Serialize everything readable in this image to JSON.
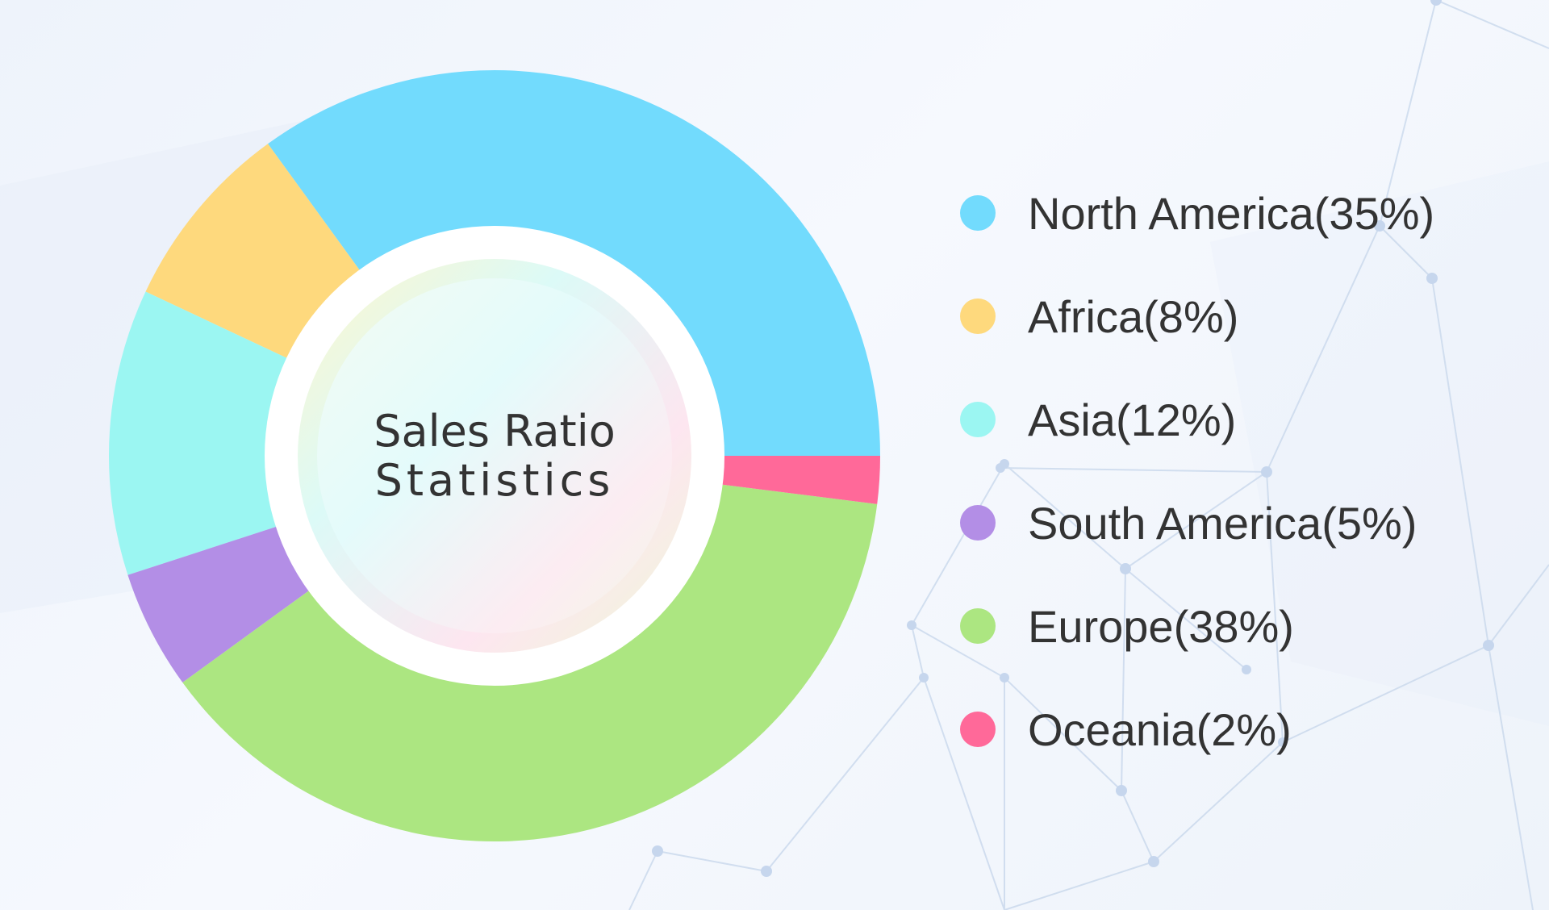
{
  "chart_data": {
    "type": "pie",
    "variant": "donut",
    "center_title": [
      "Sales Ratio",
      "Statistics"
    ],
    "legend_position": "right",
    "slices": [
      {
        "name": "North America",
        "label": "North America(35%)",
        "value": 35,
        "color": "#72dbfd"
      },
      {
        "name": "Africa",
        "label": "Africa(8%)",
        "value": 8,
        "color": "#fed97d"
      },
      {
        "name": "Asia",
        "label": "Asia(12%)",
        "value": 12,
        "color": "#9bf6f2"
      },
      {
        "name": "South America",
        "label": "South America(5%)",
        "value": 5,
        "color": "#b38ee6"
      },
      {
        "name": "Europe",
        "label": "Europe(38%)",
        "value": 38,
        "color": "#ace681"
      },
      {
        "name": "Oceania",
        "label": "Oceania(2%)",
        "value": 2,
        "color": "#ff6999"
      }
    ]
  }
}
